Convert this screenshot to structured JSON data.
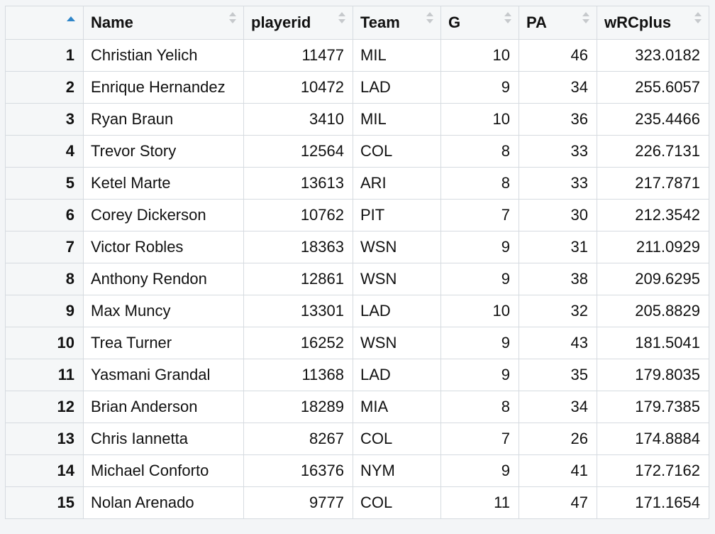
{
  "table": {
    "columns": [
      "",
      "Name",
      "playerid",
      "Team",
      "G",
      "PA",
      "wRCplus"
    ],
    "rows": [
      {
        "n": "1",
        "name": "Christian Yelich",
        "playerid": "11477",
        "team": "MIL",
        "g": "10",
        "pa": "46",
        "wrc": "323.0182"
      },
      {
        "n": "2",
        "name": "Enrique Hernandez",
        "playerid": "10472",
        "team": "LAD",
        "g": "9",
        "pa": "34",
        "wrc": "255.6057"
      },
      {
        "n": "3",
        "name": "Ryan Braun",
        "playerid": "3410",
        "team": "MIL",
        "g": "10",
        "pa": "36",
        "wrc": "235.4466"
      },
      {
        "n": "4",
        "name": "Trevor Story",
        "playerid": "12564",
        "team": "COL",
        "g": "8",
        "pa": "33",
        "wrc": "226.7131"
      },
      {
        "n": "5",
        "name": "Ketel Marte",
        "playerid": "13613",
        "team": "ARI",
        "g": "8",
        "pa": "33",
        "wrc": "217.7871"
      },
      {
        "n": "6",
        "name": "Corey Dickerson",
        "playerid": "10762",
        "team": "PIT",
        "g": "7",
        "pa": "30",
        "wrc": "212.3542"
      },
      {
        "n": "7",
        "name": "Victor Robles",
        "playerid": "18363",
        "team": "WSN",
        "g": "9",
        "pa": "31",
        "wrc": "211.0929"
      },
      {
        "n": "8",
        "name": "Anthony Rendon",
        "playerid": "12861",
        "team": "WSN",
        "g": "9",
        "pa": "38",
        "wrc": "209.6295"
      },
      {
        "n": "9",
        "name": "Max Muncy",
        "playerid": "13301",
        "team": "LAD",
        "g": "10",
        "pa": "32",
        "wrc": "205.8829"
      },
      {
        "n": "10",
        "name": "Trea Turner",
        "playerid": "16252",
        "team": "WSN",
        "g": "9",
        "pa": "43",
        "wrc": "181.5041"
      },
      {
        "n": "11",
        "name": "Yasmani Grandal",
        "playerid": "11368",
        "team": "LAD",
        "g": "9",
        "pa": "35",
        "wrc": "179.8035"
      },
      {
        "n": "12",
        "name": "Brian Anderson",
        "playerid": "18289",
        "team": "MIA",
        "g": "8",
        "pa": "34",
        "wrc": "179.7385"
      },
      {
        "n": "13",
        "name": "Chris Iannetta",
        "playerid": "8267",
        "team": "COL",
        "g": "7",
        "pa": "26",
        "wrc": "174.8884"
      },
      {
        "n": "14",
        "name": "Michael Conforto",
        "playerid": "16376",
        "team": "NYM",
        "g": "9",
        "pa": "41",
        "wrc": "172.7162"
      },
      {
        "n": "15",
        "name": "Nolan Arenado",
        "playerid": "9777",
        "team": "COL",
        "g": "11",
        "pa": "47",
        "wrc": "171.1654"
      }
    ],
    "sort_icon": "sort-ascending-icon",
    "accent_color": "#2f86c9"
  }
}
